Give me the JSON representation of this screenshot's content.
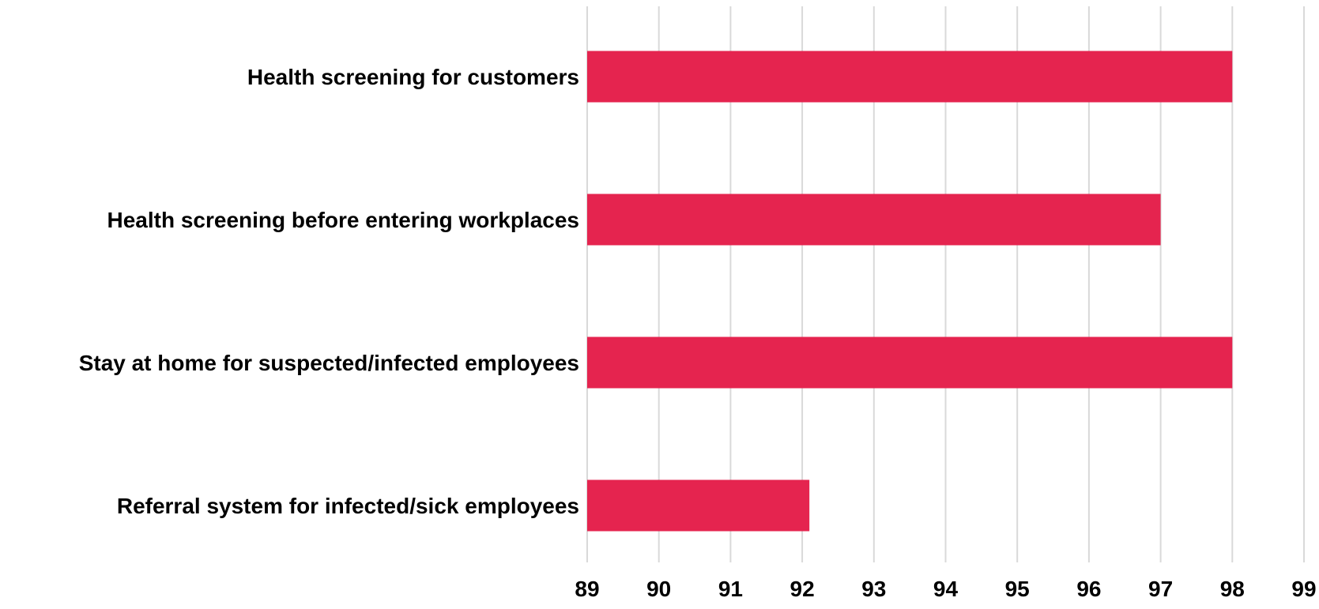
{
  "chart_data": {
    "type": "bar",
    "orientation": "horizontal",
    "title": "",
    "xlabel": "",
    "ylabel": "",
    "categories": [
      "Health screening for customers",
      "Health screening before entering workplaces",
      "Stay at home for suspected/infected employees",
      "Referral system for infected/sick employees"
    ],
    "values": [
      98,
      97,
      98,
      92.1
    ],
    "xlim": [
      89,
      99
    ],
    "xticks": [
      "89",
      "90",
      "91",
      "92",
      "93",
      "94",
      "95",
      "96",
      "97",
      "98",
      "99"
    ],
    "grid": "vertical",
    "legend": "none",
    "bar_color": "#e5244f"
  }
}
